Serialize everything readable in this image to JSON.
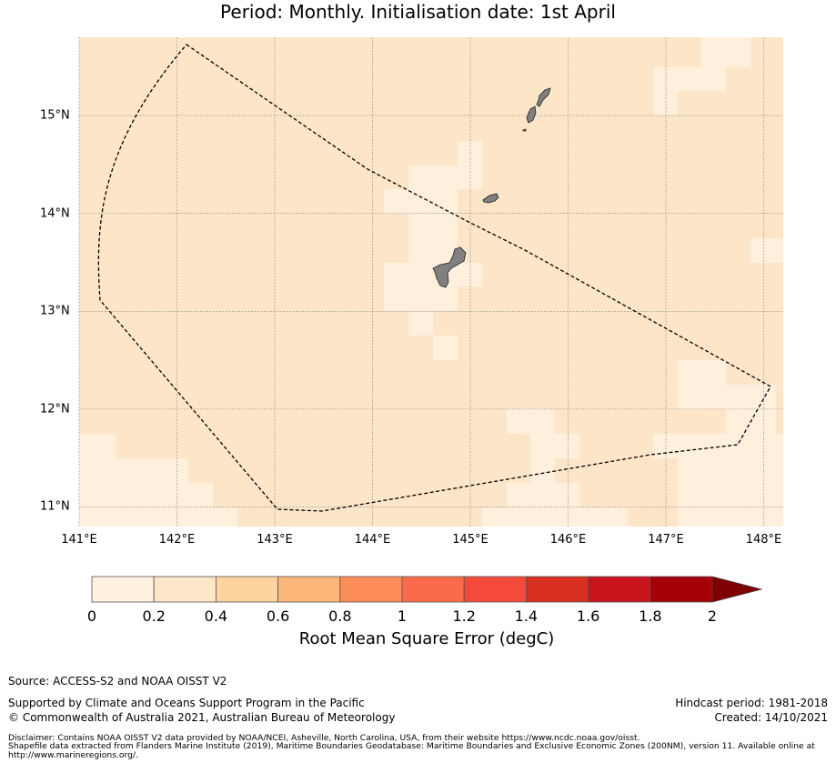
{
  "title": "Period: Monthly. Initialisation date: 1st April",
  "map": {
    "lon_range": [
      141.0,
      148.2
    ],
    "lat_range": [
      10.8,
      15.8
    ],
    "x_ticks": [
      "141°E",
      "142°E",
      "143°E",
      "144°E",
      "145°E",
      "146°E",
      "147°E",
      "148°E"
    ],
    "y_ticks": [
      "15°N",
      "14°N",
      "13°N",
      "12°N",
      "11°N"
    ],
    "grid": true,
    "background_color": "#fde6c8",
    "land_color": "#808080",
    "eez_boundary_style": "dashed"
  },
  "colorbar": {
    "title": "Root Mean Square Error (degC)",
    "ticks": [
      "0",
      "0.2",
      "0.4",
      "0.6",
      "0.8",
      "1",
      "1.2",
      "1.4",
      "1.6",
      "1.8",
      "2"
    ],
    "colors": [
      "#fff1e0",
      "#fee6c8",
      "#fdd4a0",
      "#fdb67a",
      "#fc8d59",
      "#fb6a4a",
      "#f54a3a",
      "#d7301f",
      "#c8121c",
      "#a50008"
    ],
    "extend_color": "#7f0000"
  },
  "footer": {
    "source": "Source: ACCESS-S2 and NOAA OISST V2",
    "support": "Supported by Climate and Oceans Support Program in the Pacific",
    "copyright": "© Commonwealth of Australia 2021, Australian Bureau of Meteorology",
    "hindcast": "Hindcast period: 1981-2018",
    "created": "Created: 14/10/2021",
    "disclaimer_1": "Disclaimer: Contains NOAA OISST V2 data provided by NOAA/NCEI, Asheville, North Carolina, USA, from their website https://www.ncdc.noaa.gov/oisst.",
    "disclaimer_2": "Shapefile data extracted from Flanders Marine Institute (2019), Maritime Boundaries Geodatabase: Maritime Boundaries and Exclusive Economic Zones (200NM), version 11. Available online at",
    "disclaimer_3": "http://www.marineregions.org/."
  }
}
